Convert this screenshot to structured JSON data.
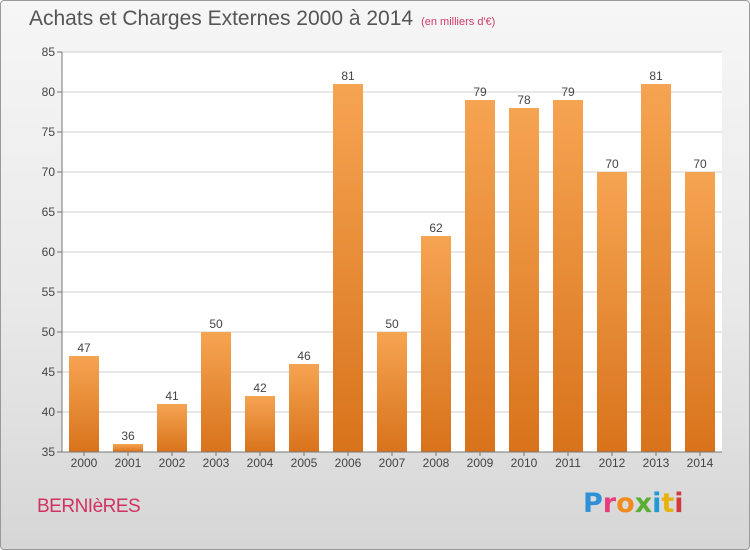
{
  "header": {
    "title": "Achats et Charges Externes 2000 à 2014",
    "subtitle": "(en milliers d'€)"
  },
  "footer": {
    "place": "BERNIèRES",
    "logo": {
      "text": "Proxiti",
      "letters": [
        "P",
        "r",
        "o",
        "x",
        "i",
        "t",
        "i"
      ],
      "colors": [
        "#2f8fd8",
        "#e83c7c",
        "#f08a1c",
        "#5aae35",
        "#1e9ad6",
        "#e8b20e",
        "#d33b3b"
      ]
    }
  },
  "colors": {
    "bar_top": "#f6a452",
    "bar_bottom": "#d8731b",
    "grid": "#d0d0d0",
    "axis_text": "#444444",
    "title": "#555555",
    "place": "#d0335f"
  },
  "chart_data": {
    "type": "bar",
    "title": "Achats et Charges Externes 2000 à 2014",
    "subtitle": "(en milliers d'€)",
    "xlabel": "",
    "ylabel": "",
    "categories": [
      "2000",
      "2001",
      "2002",
      "2003",
      "2004",
      "2005",
      "2006",
      "2007",
      "2008",
      "2009",
      "2010",
      "2011",
      "2012",
      "2013",
      "2014"
    ],
    "values": [
      47,
      36,
      41,
      50,
      42,
      46,
      81,
      50,
      62,
      79,
      78,
      79,
      70,
      81,
      70
    ],
    "ylim": [
      35,
      85
    ],
    "yticks": [
      35,
      40,
      45,
      50,
      55,
      60,
      65,
      70,
      75,
      80,
      85
    ],
    "grid": true,
    "data_labels": true
  }
}
